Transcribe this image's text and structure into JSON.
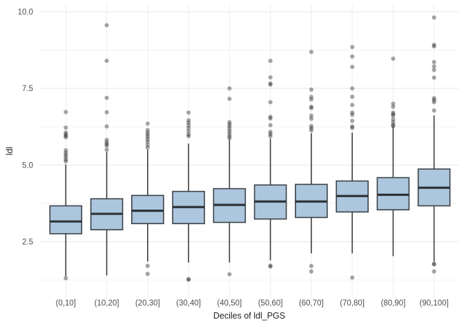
{
  "chart_data": {
    "type": "boxplot",
    "title": "",
    "xlabel": "Deciles of ldl_PGS",
    "ylabel": "ldl",
    "ylim": [
      0.6,
      10.35
    ],
    "grid": true,
    "legend": null,
    "y_ticks": [
      2.5,
      5.0,
      7.5,
      10.0
    ],
    "y_tick_labels": [
      "2.5",
      "5.0",
      "7.5",
      "10.0"
    ],
    "y_minor_ticks": [
      1.25,
      3.75,
      6.25,
      8.75
    ],
    "categories": [
      "(0,10]",
      "(10,20]",
      "(20,30]",
      "(30,40]",
      "(40,50]",
      "(50,60]",
      "(60,70]",
      "(70,80]",
      "(80,90]",
      "(90,100]"
    ],
    "boxes": [
      {
        "category": "(0,10]",
        "whisker_low": 1.37,
        "q1": 2.76,
        "median": 3.16,
        "q3": 3.67,
        "whisker_high": 5.02,
        "outliers": [
          6.73,
          6.22,
          6.06,
          6.0,
          5.95,
          5.91,
          5.48,
          5.4,
          5.33,
          5.26,
          5.18,
          5.12,
          1.31
        ]
      },
      {
        "category": "(10,20]",
        "whisker_low": 1.4,
        "q1": 2.89,
        "median": 3.41,
        "q3": 3.9,
        "whisker_high": 5.43,
        "outliers": [
          9.56,
          8.4,
          7.19,
          6.72,
          6.26,
          5.82,
          5.74,
          5.68,
          5.63,
          5.5
        ]
      },
      {
        "category": "(20,30]",
        "whisker_low": 1.85,
        "q1": 3.09,
        "median": 3.51,
        "q3": 4.01,
        "whisker_high": 5.5,
        "outliers": [
          6.35,
          6.14,
          6.06,
          5.99,
          5.92,
          5.84,
          5.76,
          5.66,
          5.57,
          1.71,
          1.45
        ]
      },
      {
        "category": "(30,40]",
        "whisker_low": 1.82,
        "q1": 3.09,
        "median": 3.63,
        "q3": 4.14,
        "whisker_high": 5.7,
        "outliers": [
          6.71,
          6.46,
          6.38,
          6.29,
          6.2,
          6.1,
          6.0,
          5.94,
          1.28,
          1.26
        ]
      },
      {
        "category": "(40,50]",
        "whisker_low": 1.82,
        "q1": 3.13,
        "median": 3.7,
        "q3": 4.23,
        "whisker_high": 5.84,
        "outliers": [
          7.5,
          7.16,
          6.4,
          6.33,
          6.26,
          6.18,
          6.1,
          6.02,
          5.94,
          5.88,
          1.44
        ]
      },
      {
        "category": "(50,60]",
        "whisker_low": 1.89,
        "q1": 3.24,
        "median": 3.81,
        "q3": 4.35,
        "whisker_high": 5.86,
        "outliers": [
          8.4,
          7.86,
          7.66,
          7.62,
          7.05,
          6.57,
          6.52,
          6.3,
          6.08,
          6.01,
          5.94,
          1.72,
          1.69
        ]
      },
      {
        "category": "(60,70]",
        "whisker_low": 2.12,
        "q1": 3.29,
        "median": 3.81,
        "q3": 4.37,
        "whisker_high": 6.04,
        "outliers": [
          8.69,
          7.46,
          7.22,
          7.14,
          6.9,
          6.86,
          6.61,
          6.51,
          6.27,
          6.2,
          6.13,
          1.71,
          1.53
        ]
      },
      {
        "category": "(70,80]",
        "whisker_low": 2.12,
        "q1": 3.47,
        "median": 3.99,
        "q3": 4.48,
        "whisker_high": 6.06,
        "outliers": [
          8.85,
          8.54,
          8.2,
          7.5,
          7.23,
          6.96,
          6.71,
          6.64,
          6.44,
          6.26,
          6.21,
          1.33
        ]
      },
      {
        "category": "(80,90]",
        "whisker_low": 2.03,
        "q1": 3.54,
        "median": 4.03,
        "q3": 4.59,
        "whisker_high": 6.26,
        "outliers": [
          8.47,
          7.0,
          6.9,
          6.71,
          6.66,
          6.61,
          6.49,
          6.4,
          6.31,
          6.27
        ]
      },
      {
        "category": "(90,100]",
        "whisker_low": 1.85,
        "q1": 3.67,
        "median": 4.26,
        "q3": 4.87,
        "whisker_high": 6.62,
        "outliers": [
          9.81,
          8.92,
          8.87,
          8.36,
          8.22,
          8.1,
          7.85,
          7.18,
          7.12,
          7.05,
          6.78,
          1.78,
          1.76,
          1.53
        ]
      }
    ],
    "colors": {
      "box_fill": "#a8c3dc",
      "box_border": "#3a4046",
      "median_line": "#2e3338",
      "whisker": "#3a3a3a",
      "outlier": "#2b2b2b",
      "grid_major": "#e6e6e6",
      "grid_minor": "#f2f2f2",
      "axis_text": "#4d4d4d",
      "axis_title": "#1f1f1f",
      "background": "#ffffff"
    }
  }
}
